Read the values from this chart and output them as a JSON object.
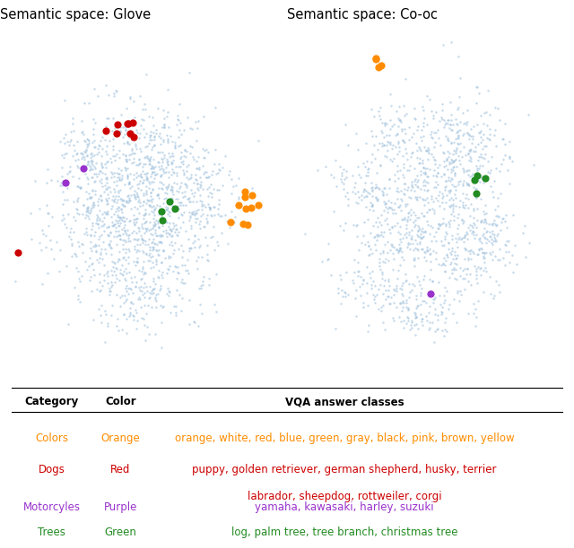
{
  "title_left": "Semantic space: Glove",
  "title_right": "Semantic space: Co-oc",
  "bg_color": "#ffffff",
  "dot_color": "#aac8e0",
  "dot_size": 3,
  "dot_alpha": 0.7,
  "categories": [
    {
      "name": "Colors",
      "color": "#ff8c00",
      "color_name": "Orange",
      "classes": "orange, white, red, blue, green, gray, black, pink, brown, yellow",
      "classes2": null,
      "marker_size": 35
    },
    {
      "name": "Dogs",
      "color": "#cc0000",
      "color_name": "Red",
      "classes": "puppy, golden retriever, german shepherd, husky, terrier",
      "classes2": "labrador, sheepdog, rottweiler, corgi",
      "marker_size": 35
    },
    {
      "name": "Motorcyles",
      "color": "#9932cc",
      "color_name": "Purple",
      "classes": "yamaha, kawasaki, harley, suzuki",
      "classes2": null,
      "marker_size": 35
    },
    {
      "name": "Trees",
      "color": "#228b22",
      "color_name": "Green",
      "classes": "log, palm tree, tree branch, christmas tree",
      "classes2": null,
      "marker_size": 35
    }
  ]
}
